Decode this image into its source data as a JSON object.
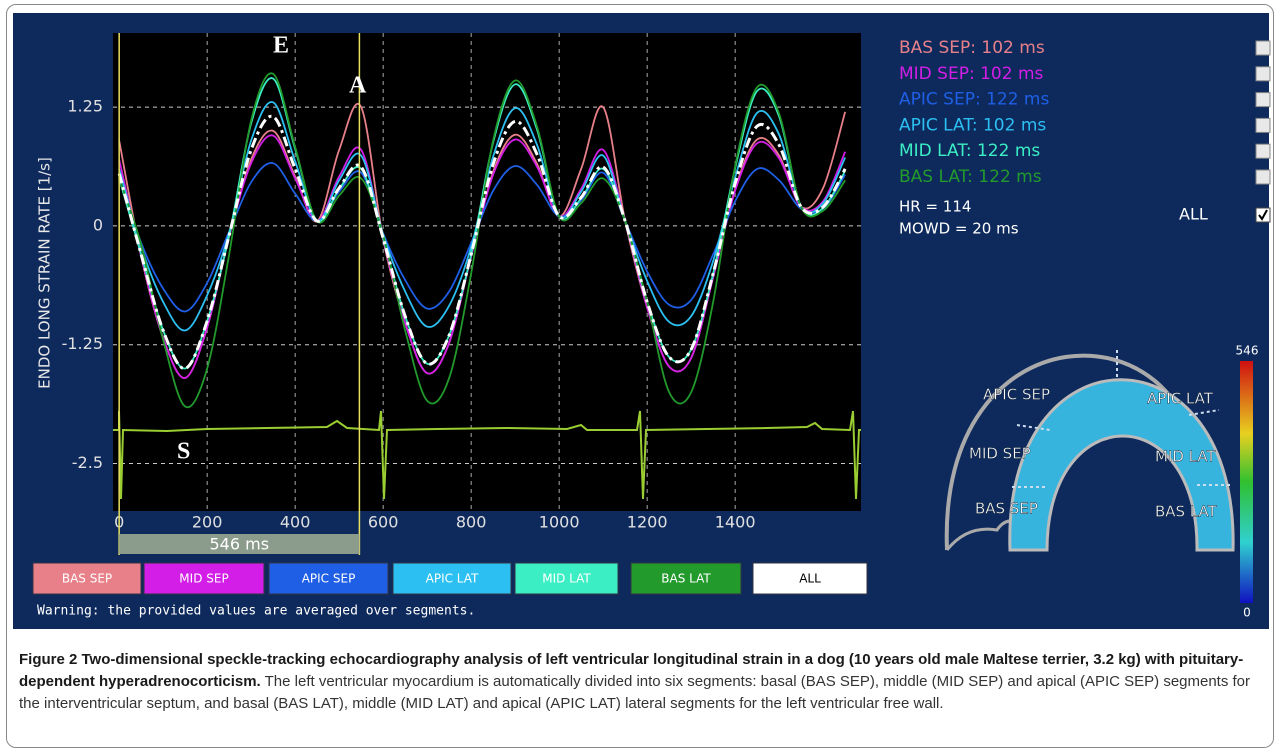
{
  "chart_data": {
    "type": "line",
    "y_label": "ENDO LONG STRAIN RATE [1/s]",
    "x": [
      0,
      50,
      100,
      150,
      200,
      250,
      300,
      350,
      400,
      450,
      500,
      550,
      600,
      650,
      700,
      750,
      800,
      850,
      900,
      950,
      1000,
      1050,
      1100,
      1150,
      1200,
      1250,
      1300,
      1350,
      1400,
      1450,
      1500,
      1550,
      1600,
      1650
    ],
    "series": [
      {
        "name": "BAS SEP",
        "legend_label": "BAS SEP: 102  ms",
        "color": "#e8808a",
        "values": [
          0.9,
          -0.32,
          -1.18,
          -1.6,
          -1.07,
          -0.11,
          0.7,
          1.0,
          0.52,
          0.05,
          0.8,
          1.25,
          -0.14,
          -1.02,
          -1.55,
          -1.23,
          -0.32,
          0.57,
          0.96,
          0.65,
          0.1,
          0.6,
          1.25,
          0.05,
          -0.86,
          -1.48,
          -1.39,
          -0.54,
          0.39,
          0.91,
          0.74,
          0.2,
          0.4,
          1.2
        ]
      },
      {
        "name": "MID SEP",
        "legend_label": "MID SEP: 102  ms",
        "color": "#d21ee6",
        "values": [
          0.7,
          -0.32,
          -1.18,
          -1.6,
          -1.07,
          -0.11,
          0.66,
          0.95,
          0.5,
          0.05,
          0.52,
          0.8,
          -0.14,
          -1.02,
          -1.55,
          -1.23,
          -0.32,
          0.54,
          0.91,
          0.62,
          0.1,
          0.39,
          0.8,
          0.05,
          -0.86,
          -1.48,
          -1.39,
          -0.54,
          0.37,
          0.87,
          0.71,
          0.2,
          0.26,
          0.78
        ]
      },
      {
        "name": "APIC SEP",
        "legend_label": "APIC SEP: 122  ms",
        "color": "#1f5fe6",
        "values": [
          0.5,
          -0.18,
          -0.66,
          -0.9,
          -0.6,
          -0.06,
          0.46,
          0.66,
          0.34,
          0.05,
          0.36,
          0.56,
          -0.08,
          -0.57,
          -0.87,
          -0.69,
          -0.18,
          0.37,
          0.63,
          0.43,
          0.1,
          0.27,
          0.56,
          0.05,
          -0.48,
          -0.83,
          -0.78,
          -0.3,
          0.26,
          0.6,
          0.48,
          0.18,
          0.18,
          0.54
        ]
      },
      {
        "name": "APIC LAT",
        "legend_label": "APIC LAT: 102  ms",
        "color": "#2cc0f2",
        "values": [
          0.6,
          -0.22,
          -0.8,
          -1.1,
          -0.73,
          -0.07,
          0.9,
          1.3,
          0.68,
          0.05,
          0.48,
          0.74,
          -0.09,
          -0.69,
          -1.06,
          -0.84,
          -0.22,
          0.73,
          1.24,
          0.85,
          0.1,
          0.36,
          0.74,
          0.05,
          -0.58,
          -1.01,
          -0.95,
          -0.37,
          0.51,
          1.19,
          0.96,
          0.2,
          0.24,
          0.72
        ]
      },
      {
        "name": "MID LAT",
        "legend_label": "MID LAT: 122  ms",
        "color": "#3ceec4",
        "values": [
          0.5,
          -0.3,
          -1.1,
          -1.5,
          -1.0,
          -0.1,
          1.08,
          1.55,
          0.81,
          0.05,
          0.39,
          0.6,
          -0.13,
          -0.95,
          -1.45,
          -1.15,
          -0.3,
          0.88,
          1.49,
          1.01,
          0.1,
          0.29,
          0.6,
          0.05,
          -0.8,
          -1.38,
          -1.3,
          -0.5,
          0.61,
          1.42,
          1.15,
          0.2,
          0.19,
          0.58
        ]
      },
      {
        "name": "BAS LAT",
        "legend_label": "BAS LAT: 122  ms",
        "color": "#229a2c",
        "values": [
          0.5,
          -0.2,
          -1.2,
          -1.9,
          -1.5,
          -0.3,
          1.11,
          1.6,
          0.83,
          0.05,
          0.32,
          0.5,
          -0.1,
          -1.1,
          -1.84,
          -1.6,
          -0.5,
          0.9,
          1.53,
          1.04,
          0.1,
          0.24,
          0.5,
          0.05,
          -0.8,
          -1.75,
          -1.75,
          -0.8,
          0.63,
          1.46,
          1.18,
          0.2,
          0.16,
          0.48
        ]
      }
    ],
    "average": {
      "color": "#ffffff",
      "values": [
        0.55,
        -0.3,
        -1.1,
        -1.5,
        -1.0,
        -0.1,
        0.8,
        1.15,
        0.6,
        0.05,
        0.4,
        0.62,
        -0.13,
        -0.95,
        -1.45,
        -1.15,
        -0.3,
        0.65,
        1.1,
        0.75,
        0.1,
        0.3,
        0.62,
        0.05,
        -0.8,
        -1.38,
        -1.3,
        -0.5,
        0.45,
        1.05,
        0.85,
        0.2,
        0.2,
        0.6
      ]
    },
    "xlim": [
      -14,
      1686
    ],
    "ylim": [
      -3,
      2.03
    ],
    "xticks": [
      0,
      200,
      400,
      600,
      800,
      1000,
      1200,
      1400
    ],
    "yticks": [
      1.25,
      0,
      -1.25,
      -2.5
    ],
    "grid": true,
    "annotations": [
      "E",
      "A",
      "S"
    ],
    "cursors": [
      0,
      546
    ],
    "cursor_label": "546 ms",
    "hr_label": "HR = 114",
    "mowd_label": "MOWD = 20 ms",
    "all_label": "ALL",
    "colorbar": {
      "max": 546,
      "min": 0
    }
  },
  "warning": "Warning: the provided values are averaged over segments.",
  "caption": {
    "bold": "Figure 2 Two-dimensional speckle-tracking echocardiography analysis of left ventricular longitudinal strain in a dog (10 years old male Maltese terrier, 3.2 kg) with pituitary-dependent hyperadrenocorticism.",
    "text": "The left ventricular myocardium is automatically divided into six segments: basal (BAS SEP), middle (MID SEP) and apical (APIC SEP) segments for the interventricular septum, and basal (BAS LAT), middle (MID LAT) and apical (APIC LAT) lateral segments for the left ventricular free wall."
  }
}
